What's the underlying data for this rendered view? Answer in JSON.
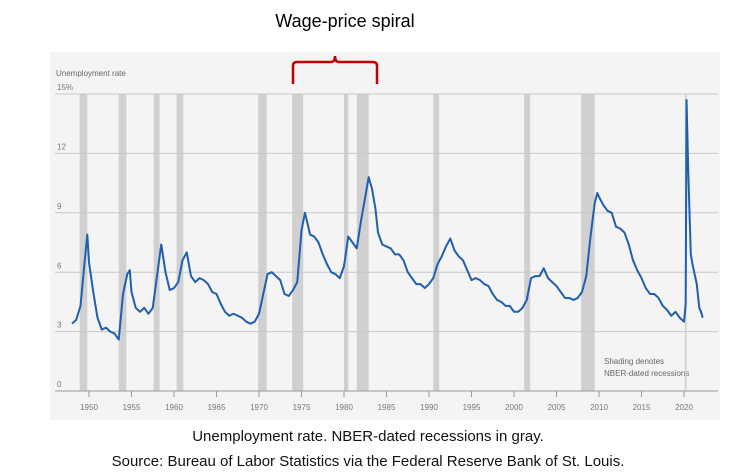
{
  "chart_data": {
    "type": "line",
    "title": "Wage-price spiral",
    "y_label": "Unemployment rate",
    "recession_note": [
      "Shading denotes",
      "NBER-dated recessions"
    ],
    "caption": [
      "Unemployment rate. NBER-dated recessions in gray.",
      "Source: Bureau of Labor Statistics via the Federal Reserve Bank of St. Louis."
    ],
    "xlim": [
      1946,
      2024
    ],
    "xticks": [
      1950,
      1955,
      1960,
      1965,
      1970,
      1975,
      1980,
      1985,
      1990,
      1995,
      2000,
      2005,
      2010,
      2015,
      2020
    ],
    "ylim": [
      0,
      15
    ],
    "yticks": [
      0,
      3,
      6,
      9,
      12,
      {
        "value": 15,
        "label": "15%"
      }
    ],
    "grid": true,
    "recession_color": "#d0d0d0",
    "recessions": [
      [
        1948.9,
        1949.8
      ],
      [
        1953.5,
        1954.4
      ],
      [
        1957.6,
        1958.3
      ],
      [
        1960.3,
        1961.1
      ],
      [
        1969.9,
        1970.9
      ],
      [
        1973.9,
        1975.2
      ],
      [
        1980.0,
        1980.5
      ],
      [
        1981.5,
        1982.9
      ],
      [
        1990.5,
        1991.2
      ],
      [
        2001.2,
        2001.9
      ],
      [
        2007.9,
        2009.5
      ],
      [
        2020.1,
        2020.3
      ]
    ],
    "x": [
      1948.0,
      1948.5,
      1949.0,
      1949.5,
      1949.8,
      1950.0,
      1950.5,
      1951.0,
      1951.5,
      1952.0,
      1952.5,
      1953.0,
      1953.5,
      1954.0,
      1954.5,
      1954.8,
      1955.0,
      1955.5,
      1956.0,
      1956.5,
      1957.0,
      1957.5,
      1958.0,
      1958.5,
      1959.0,
      1959.5,
      1960.0,
      1960.5,
      1961.0,
      1961.5,
      1962.0,
      1962.5,
      1963.0,
      1963.5,
      1964.0,
      1964.5,
      1965.0,
      1965.5,
      1966.0,
      1966.5,
      1967.0,
      1967.5,
      1968.0,
      1968.5,
      1969.0,
      1969.5,
      1970.0,
      1970.5,
      1971.0,
      1971.5,
      1972.0,
      1972.5,
      1973.0,
      1973.5,
      1974.0,
      1974.5,
      1975.0,
      1975.4,
      1975.8,
      1976.0,
      1976.5,
      1977.0,
      1977.5,
      1978.0,
      1978.5,
      1979.0,
      1979.5,
      1980.0,
      1980.5,
      1981.0,
      1981.5,
      1982.0,
      1982.5,
      1982.9,
      1983.3,
      1983.7,
      1984.0,
      1984.5,
      1985.0,
      1985.5,
      1986.0,
      1986.5,
      1987.0,
      1987.5,
      1988.0,
      1988.5,
      1989.0,
      1989.5,
      1990.0,
      1990.5,
      1991.0,
      1991.5,
      1992.0,
      1992.5,
      1993.0,
      1993.5,
      1994.0,
      1994.5,
      1995.0,
      1995.5,
      1996.0,
      1996.5,
      1997.0,
      1997.5,
      1998.0,
      1998.5,
      1999.0,
      1999.5,
      2000.0,
      2000.5,
      2001.0,
      2001.5,
      2002.0,
      2002.5,
      2003.0,
      2003.5,
      2004.0,
      2004.5,
      2005.0,
      2005.5,
      2006.0,
      2006.5,
      2007.0,
      2007.5,
      2008.0,
      2008.5,
      2009.0,
      2009.5,
      2009.8,
      2010.0,
      2010.5,
      2011.0,
      2011.5,
      2012.0,
      2012.5,
      2013.0,
      2013.5,
      2014.0,
      2014.5,
      2015.0,
      2015.5,
      2016.0,
      2016.5,
      2017.0,
      2017.5,
      2018.0,
      2018.5,
      2019.0,
      2019.5,
      2020.0,
      2020.2,
      2020.3,
      2020.5,
      2020.8,
      2021.0,
      2021.5,
      2021.8,
      2022.0,
      2022.2
    ],
    "series": [
      {
        "name": "Unemployment rate",
        "color": "#1f5fae",
        "values": [
          3.4,
          3.6,
          4.3,
          6.6,
          7.9,
          6.5,
          5.0,
          3.7,
          3.1,
          3.2,
          3.0,
          2.9,
          2.6,
          4.9,
          5.9,
          6.1,
          5.0,
          4.2,
          4.0,
          4.2,
          3.9,
          4.2,
          5.8,
          7.4,
          6.0,
          5.1,
          5.2,
          5.5,
          6.6,
          7.0,
          5.8,
          5.5,
          5.7,
          5.6,
          5.4,
          5.0,
          4.9,
          4.4,
          4.0,
          3.8,
          3.9,
          3.8,
          3.7,
          3.5,
          3.4,
          3.5,
          3.9,
          4.9,
          5.9,
          6.0,
          5.8,
          5.6,
          4.9,
          4.8,
          5.1,
          5.5,
          8.1,
          9.0,
          8.3,
          7.9,
          7.8,
          7.5,
          6.9,
          6.4,
          6.0,
          5.9,
          5.7,
          6.3,
          7.8,
          7.5,
          7.2,
          8.6,
          9.8,
          10.8,
          10.2,
          9.2,
          8.0,
          7.4,
          7.3,
          7.2,
          6.9,
          6.9,
          6.6,
          6.0,
          5.7,
          5.4,
          5.4,
          5.2,
          5.4,
          5.7,
          6.4,
          6.8,
          7.3,
          7.7,
          7.1,
          6.8,
          6.6,
          6.1,
          5.6,
          5.7,
          5.6,
          5.4,
          5.3,
          4.9,
          4.6,
          4.5,
          4.3,
          4.3,
          4.0,
          4.0,
          4.2,
          4.6,
          5.7,
          5.8,
          5.8,
          6.2,
          5.7,
          5.5,
          5.3,
          5.0,
          4.7,
          4.7,
          4.6,
          4.7,
          5.0,
          5.8,
          7.8,
          9.5,
          10.0,
          9.8,
          9.4,
          9.1,
          9.0,
          8.3,
          8.2,
          8.0,
          7.4,
          6.6,
          6.1,
          5.7,
          5.2,
          4.9,
          4.9,
          4.7,
          4.3,
          4.1,
          3.8,
          4.0,
          3.7,
          3.5,
          4.4,
          14.7,
          11.1,
          6.9,
          6.4,
          5.4,
          4.2,
          4.0,
          3.7
        ]
      }
    ]
  }
}
